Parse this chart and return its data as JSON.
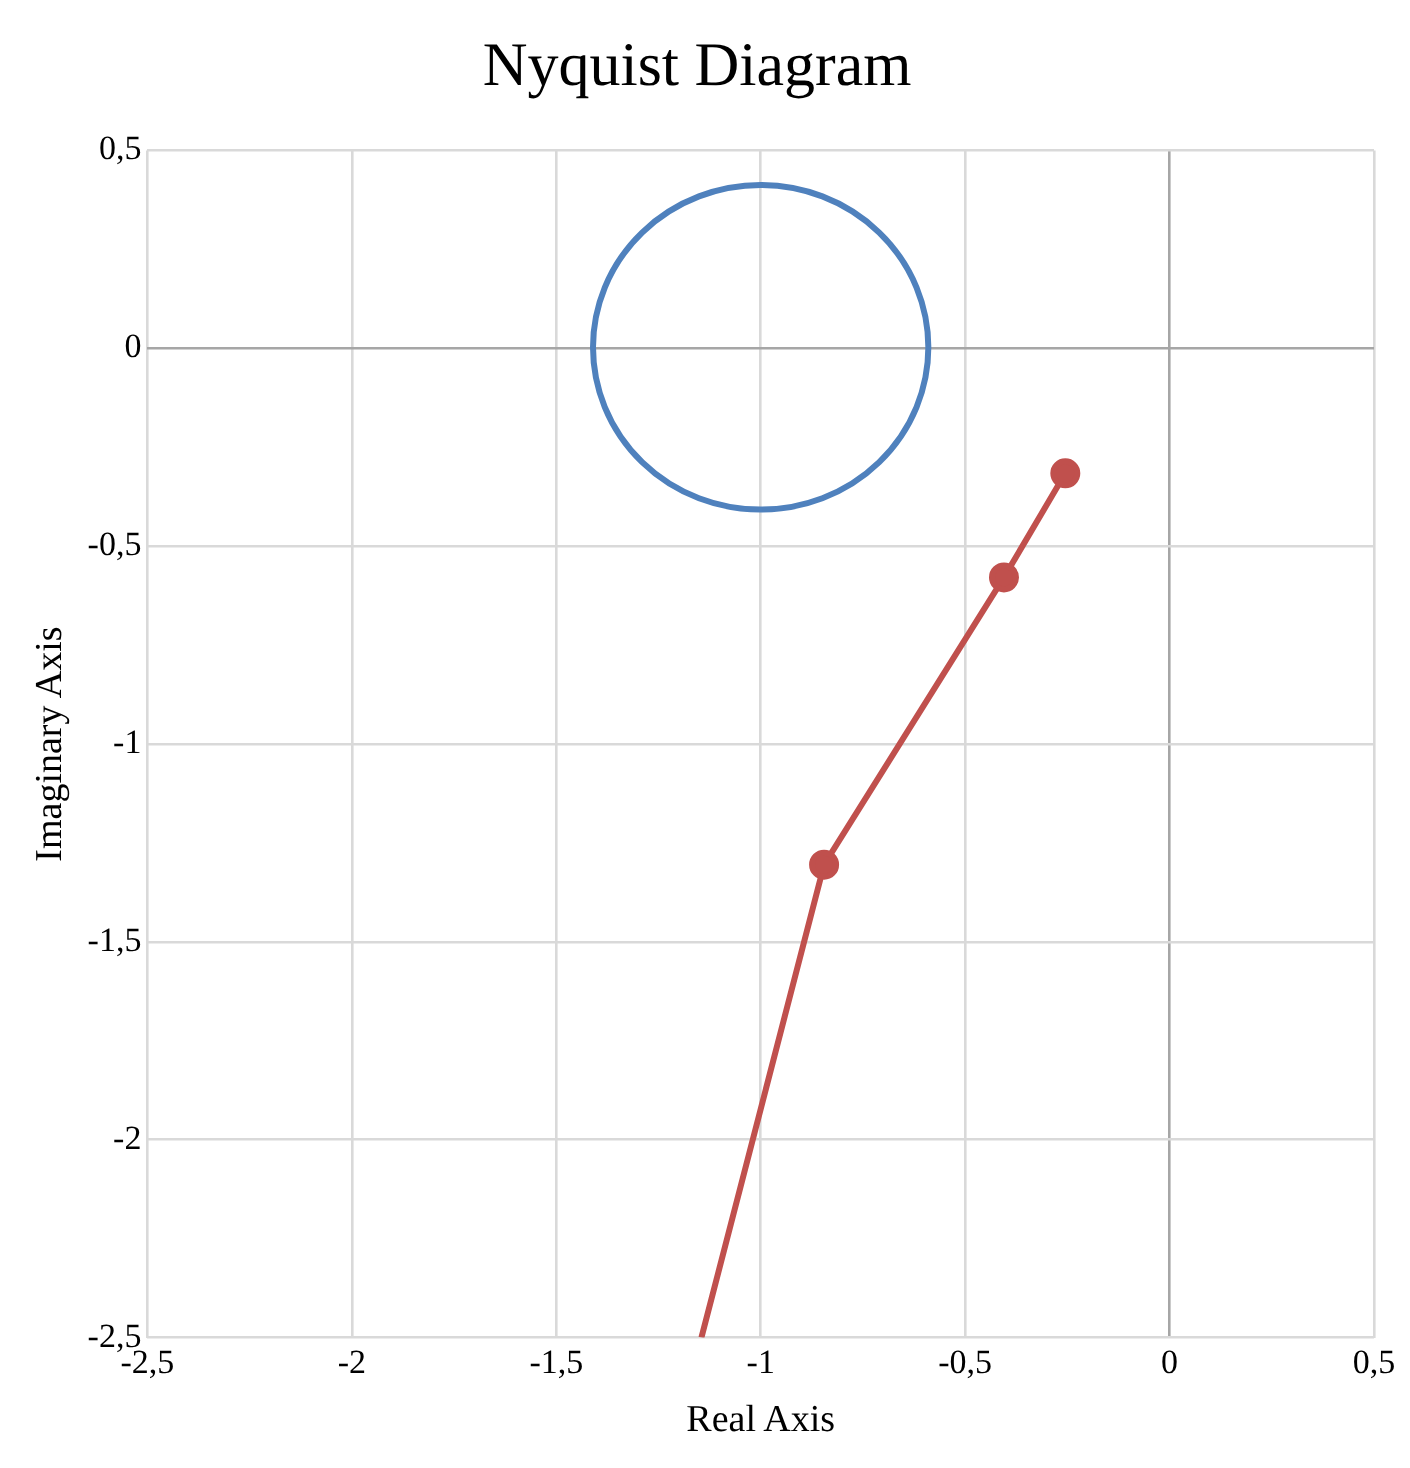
{
  "chart_data": {
    "type": "line",
    "title": "Nyquist Diagram",
    "xlabel": "Real Axis",
    "ylabel": "Imaginary Axis",
    "series": [
      {
        "color": "#c0504d",
        "marker": "circle",
        "x": [
          -0.255,
          -0.405,
          -0.845,
          -1.145
        ],
        "values": [
          -0.316,
          -0.579,
          -1.305,
          -2.5
        ]
      }
    ],
    "xlim": [
      -2.5,
      0.5
    ],
    "xticks": [
      {
        "value": -2.5,
        "label": "-2,5"
      },
      -2,
      {
        "value": -1.5,
        "label": "-1,5"
      },
      -1,
      {
        "value": -0.5,
        "label": "-0,5"
      },
      0,
      {
        "value": 0.5,
        "label": "0,5"
      }
    ],
    "ylim": [
      -2.5,
      0.5
    ],
    "yticks": [
      {
        "value": -2.5,
        "label": "-2,5"
      },
      -2,
      {
        "value": -1.5,
        "label": "-1,5"
      },
      -1,
      {
        "value": -0.5,
        "label": "-0,5"
      },
      0,
      {
        "value": 0.5,
        "label": "0,5"
      }
    ],
    "grid": true,
    "legend": false,
    "line_style": "solid"
  }
}
